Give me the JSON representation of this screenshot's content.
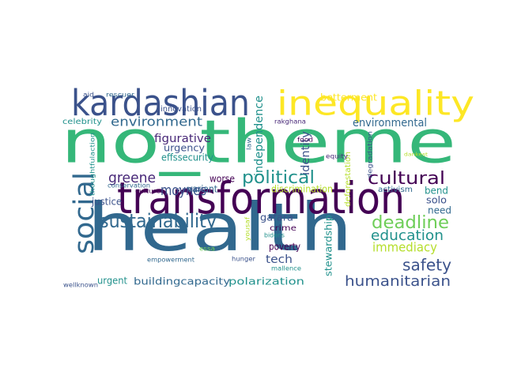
{
  "words": [
    {
      "text": "health",
      "color": "#31688e"
    },
    {
      "text": "no_theme",
      "color": "#35b779"
    },
    {
      "text": "transformation",
      "color": "#440154"
    },
    {
      "text": "kardashian",
      "color": "#3b528b"
    },
    {
      "text": "inequality",
      "color": "#fde725"
    },
    {
      "text": "social",
      "color": "#31688e"
    },
    {
      "text": "sustainability",
      "color": "#31688e"
    },
    {
      "text": "political",
      "color": "#21918c"
    },
    {
      "text": "cultural",
      "color": "#440154"
    },
    {
      "text": "deadline",
      "color": "#6ece58"
    },
    {
      "text": "education",
      "color": "#21918c"
    },
    {
      "text": "safety",
      "color": "#3b528b"
    },
    {
      "text": "humanitarian",
      "color": "#3b528b"
    },
    {
      "text": "environment",
      "color": "#31688e"
    },
    {
      "text": "greene",
      "color": "#482878"
    },
    {
      "text": "moynes",
      "color": "#3b528b"
    },
    {
      "text": "figurative",
      "color": "#482878"
    },
    {
      "text": "urgency",
      "color": "#3b528b"
    },
    {
      "text": "effssecurity",
      "color": "#21918c"
    },
    {
      "text": "independence",
      "color": "#21918c"
    },
    {
      "text": "identity",
      "color": "#3b528b"
    },
    {
      "text": "immediacy",
      "color": "#b5de2b"
    },
    {
      "text": "environmental",
      "color": "#31688e"
    },
    {
      "text": "betterment",
      "color": "#fde725"
    },
    {
      "text": "innovation",
      "color": "#3b528b"
    },
    {
      "text": "celebrity",
      "color": "#21918c"
    },
    {
      "text": "rescuer",
      "color": "#31688e"
    },
    {
      "text": "aid",
      "color": "#3b528b"
    },
    {
      "text": "rakghana",
      "color": "#482878"
    },
    {
      "text": "worse",
      "color": "#440154"
    },
    {
      "text": "variant",
      "color": "#31688e"
    },
    {
      "text": "survival",
      "color": "#3b528b"
    },
    {
      "text": "culture",
      "color": "#440154"
    },
    {
      "text": "conservation",
      "color": "#31688e"
    },
    {
      "text": "justice",
      "color": "#3b528b"
    },
    {
      "text": "thoughtfulaction",
      "color": "#21918c"
    },
    {
      "text": "discrimination",
      "color": "#b5de2b"
    },
    {
      "text": "deforestation",
      "color": "#b5de2b"
    },
    {
      "text": "degradation",
      "color": "#3b528b"
    },
    {
      "text": "dankest",
      "color": "#b5de2b"
    },
    {
      "text": "equity",
      "color": "#482878"
    },
    {
      "text": "food",
      "color": "#440154"
    },
    {
      "text": "law",
      "color": "#31688e"
    },
    {
      "text": "bend",
      "color": "#21918c"
    },
    {
      "text": "solo",
      "color": "#3b528b"
    },
    {
      "text": "need",
      "color": "#31688e"
    },
    {
      "text": "activism",
      "color": "#31688e"
    },
    {
      "text": "gafara",
      "color": "#3b528b"
    },
    {
      "text": "crime",
      "color": "#440154"
    },
    {
      "text": "poverty",
      "color": "#440154"
    },
    {
      "text": "tech",
      "color": "#3b528b"
    },
    {
      "text": "stewardship",
      "color": "#21918c"
    },
    {
      "text": "urgent",
      "color": "#21918c"
    },
    {
      "text": "buildingcapacity",
      "color": "#31688e"
    },
    {
      "text": "polarization",
      "color": "#21918c"
    },
    {
      "text": "empowerment",
      "color": "#31688e"
    },
    {
      "text": "hunger",
      "color": "#3b528b"
    },
    {
      "text": "mallence",
      "color": "#21918c"
    },
    {
      "text": "bidens",
      "color": "#21918c"
    },
    {
      "text": "yousaf",
      "color": "#b5de2b"
    },
    {
      "text": "essa",
      "color": "#6ece58"
    },
    {
      "text": "wellknown",
      "color": "#3b528b"
    }
  ]
}
